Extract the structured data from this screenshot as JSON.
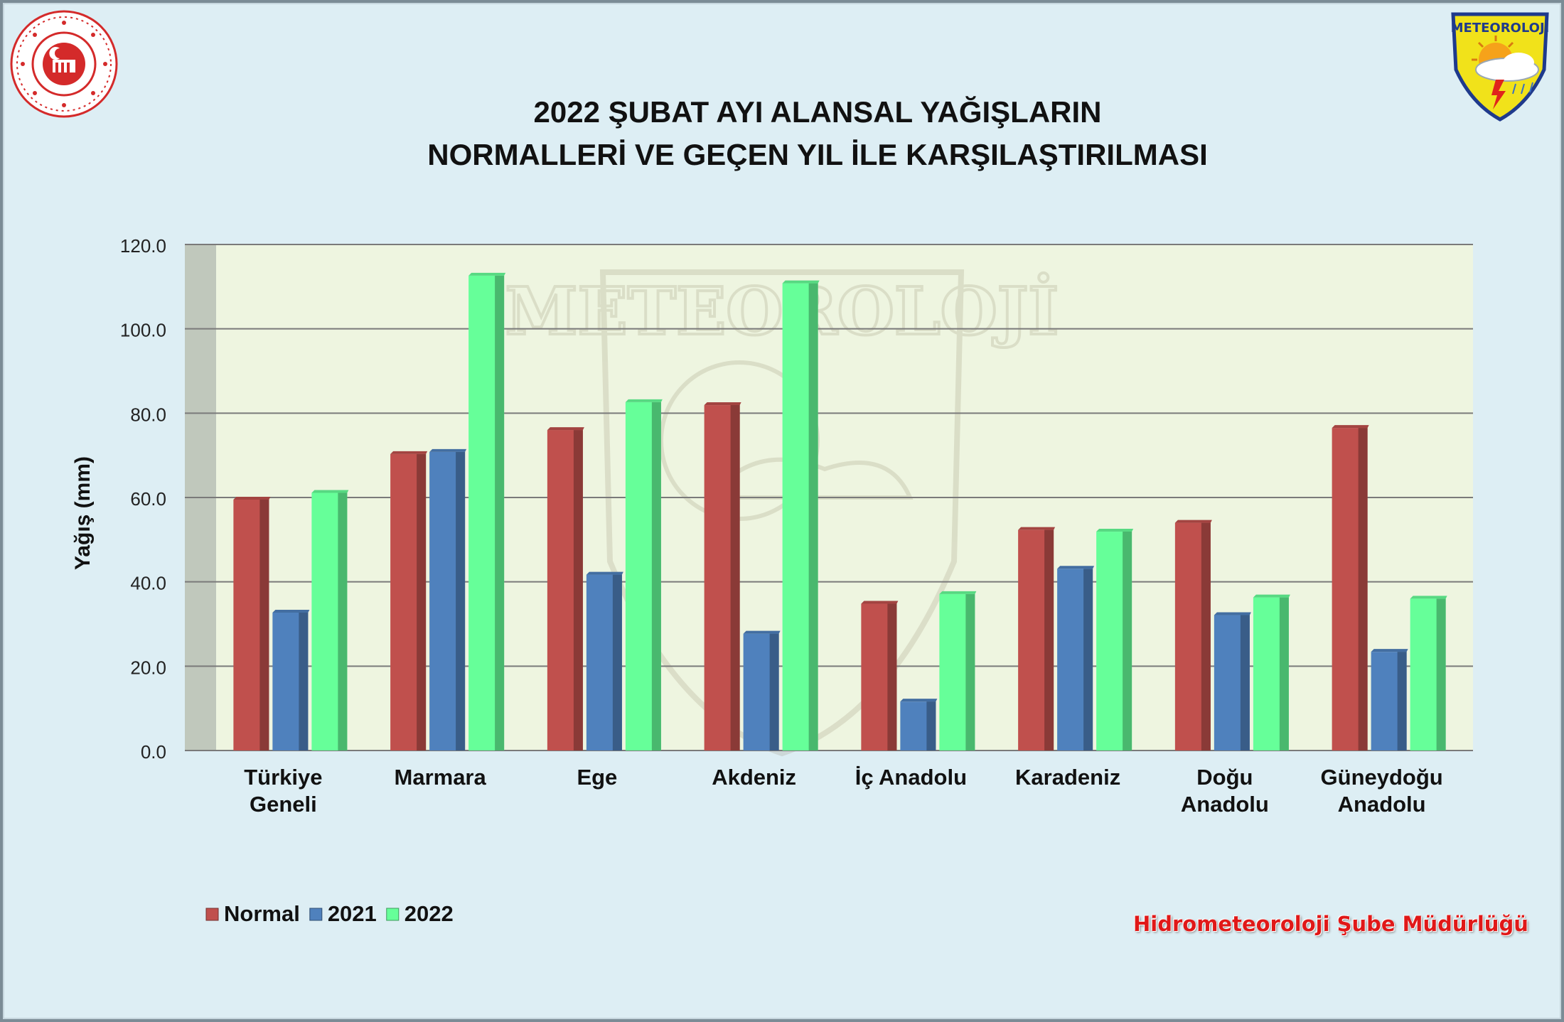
{
  "chart_data": {
    "type": "bar",
    "title": [
      "2022 ŞUBAT AYI ALANSAL YAĞIŞLARIN",
      "NORMALLERİ VE GEÇEN YIL İLE KARŞILAŞTIRILMASI"
    ],
    "ylabel": "Yağış (mm)",
    "xlabel": "",
    "ylim": [
      0,
      120
    ],
    "yticks": [
      "0.0",
      "20.0",
      "40.0",
      "60.0",
      "80.0",
      "100.0",
      "120.0"
    ],
    "grid": true,
    "legend_position": "bottom-left",
    "categories": [
      [
        "Türkiye",
        "Geneli"
      ],
      [
        "Marmara"
      ],
      [
        "Ege"
      ],
      [
        "Akdeniz"
      ],
      [
        "İç Anadolu"
      ],
      [
        "Karadeniz"
      ],
      [
        "Doğu",
        "Anadolu"
      ],
      [
        "Güneydoğu",
        "Anadolu"
      ]
    ],
    "series": [
      {
        "name": "Normal",
        "color": "#c0504d",
        "values": [
          59.5,
          70.3,
          76.0,
          81.9,
          34.8,
          52.3,
          54.0,
          76.5
        ]
      },
      {
        "name": "2021",
        "color": "#4f81bd",
        "values": [
          32.7,
          70.8,
          41.7,
          27.7,
          11.6,
          43.1,
          32.1,
          23.4
        ]
      },
      {
        "name": "2022",
        "color": "#66ff99",
        "values": [
          61.1,
          112.6,
          82.6,
          110.8,
          37.1,
          51.9,
          36.3,
          36.0
        ]
      }
    ]
  },
  "logos": {
    "left_emblem": "ministry-seal",
    "right_emblem": {
      "text": "METEOROLOJİ"
    },
    "watermark": "METEOROLOJİ"
  },
  "footer": {
    "credit": "Hidrometeoroloji Şube Müdürlüğü"
  },
  "colors": {
    "background": "#ddeef4",
    "plot_area": "#eef5e0",
    "wall": "#c0c8bc",
    "gridline": "#7a7a7a"
  }
}
